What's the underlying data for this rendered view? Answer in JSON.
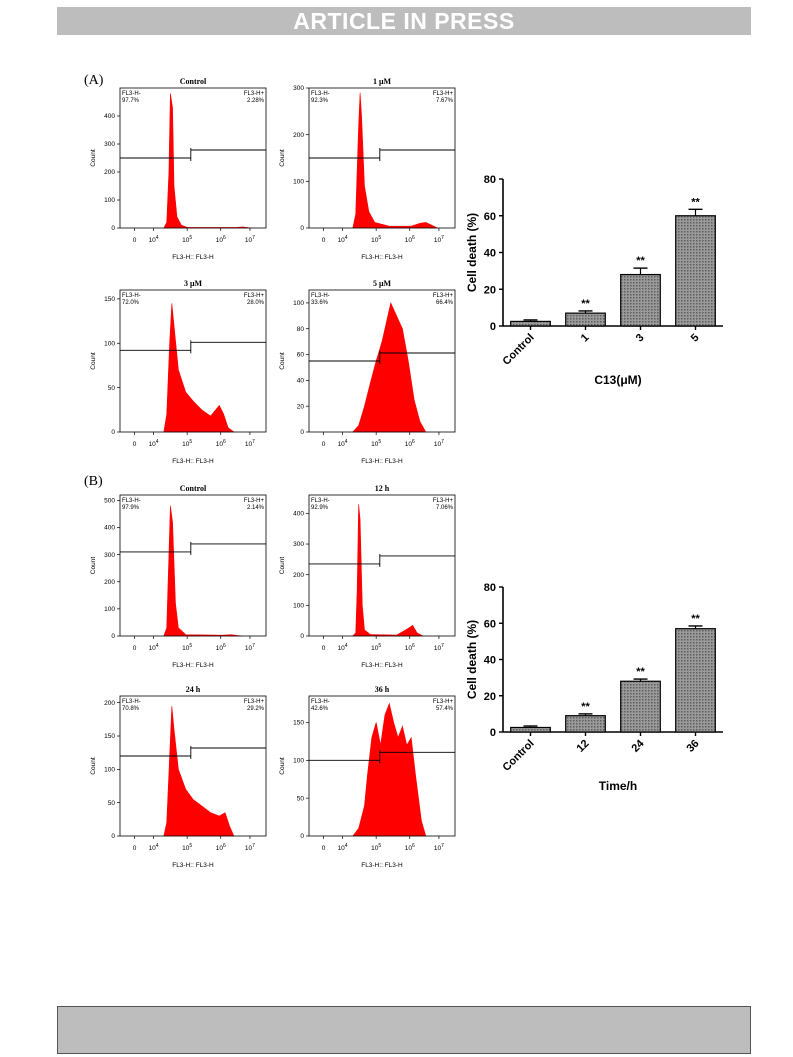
{
  "header": {
    "banner": "ARTICLE IN PRESS"
  },
  "panels": {
    "A_label": "(A)",
    "B_label": "(B)"
  },
  "colors": {
    "histogram_fill": "#ff0000",
    "banner_bg": "#bdbdbd",
    "bar_fill": "#8a8a8a"
  },
  "chart_data": [
    {
      "type": "area",
      "panel": "A",
      "title": "Control",
      "gate_neg_label": "FL3-H-",
      "gate_pos_label": "FL3-H+",
      "gate_neg_pct": "97.7%",
      "gate_pos_pct": "2.28%",
      "ylabel": "Count",
      "xlabel": "FL3-H:: FL3-H",
      "ylim": [
        0,
        500
      ],
      "yticks": [
        "0",
        "100",
        "200",
        "300",
        "400"
      ],
      "ytick_values": [
        0,
        100,
        200,
        300,
        400
      ],
      "xticks": [
        "0",
        "10^4",
        "10^5",
        "10^6",
        "10^7"
      ],
      "gate_level": 250,
      "histogram": [
        [
          0.3,
          0
        ],
        [
          0.32,
          20
        ],
        [
          0.335,
          200
        ],
        [
          0.345,
          480
        ],
        [
          0.36,
          430
        ],
        [
          0.37,
          150
        ],
        [
          0.39,
          40
        ],
        [
          0.42,
          10
        ],
        [
          0.46,
          2
        ],
        [
          0.8,
          2
        ],
        [
          0.84,
          4
        ],
        [
          0.88,
          1
        ],
        [
          0.9,
          0
        ]
      ]
    },
    {
      "type": "area",
      "panel": "A",
      "title": "1 μM",
      "gate_neg_label": "FL3-H-",
      "gate_pos_label": "FL3-H+",
      "gate_neg_pct": "92.3%",
      "gate_pos_pct": "7.67%",
      "ylabel": "Count",
      "xlabel": "FL3-H:: FL3-H",
      "ylim": [
        0,
        300
      ],
      "yticks": [
        "0",
        "100",
        "200",
        "300"
      ],
      "ytick_values": [
        0,
        100,
        200,
        300
      ],
      "xticks": [
        "0",
        "10^4",
        "10^5",
        "10^6",
        "10^7"
      ],
      "gate_level": 150,
      "histogram": [
        [
          0.3,
          0
        ],
        [
          0.32,
          30
        ],
        [
          0.34,
          220
        ],
        [
          0.35,
          290
        ],
        [
          0.36,
          240
        ],
        [
          0.38,
          90
        ],
        [
          0.41,
          35
        ],
        [
          0.45,
          12
        ],
        [
          0.55,
          4
        ],
        [
          0.7,
          4
        ],
        [
          0.76,
          10
        ],
        [
          0.8,
          12
        ],
        [
          0.84,
          6
        ],
        [
          0.88,
          0
        ]
      ]
    },
    {
      "type": "area",
      "panel": "A",
      "title": "3 μM",
      "gate_neg_label": "FL3-H-",
      "gate_pos_label": "FL3-H+",
      "gate_neg_pct": "72.0%",
      "gate_pos_pct": "28.0%",
      "ylabel": "Count",
      "xlabel": "FL3-H:: FL3-H",
      "ylim": [
        0,
        160
      ],
      "yticks": [
        "0",
        "50",
        "100",
        "150"
      ],
      "ytick_values": [
        0,
        50,
        100,
        150
      ],
      "xticks": [
        "0",
        "10^4",
        "10^5",
        "10^6",
        "10^7"
      ],
      "gate_level": 92,
      "histogram": [
        [
          0.3,
          0
        ],
        [
          0.32,
          20
        ],
        [
          0.34,
          100
        ],
        [
          0.355,
          145
        ],
        [
          0.37,
          120
        ],
        [
          0.4,
          70
        ],
        [
          0.45,
          45
        ],
        [
          0.5,
          35
        ],
        [
          0.56,
          25
        ],
        [
          0.62,
          18
        ],
        [
          0.68,
          30
        ],
        [
          0.71,
          20
        ],
        [
          0.74,
          5
        ],
        [
          0.78,
          0
        ]
      ]
    },
    {
      "type": "area",
      "panel": "A",
      "title": "5 μM",
      "gate_neg_label": "FL3-H-",
      "gate_pos_label": "FL3-H+",
      "gate_neg_pct": "33.6%",
      "gate_pos_pct": "66.4%",
      "ylabel": "Count",
      "xlabel": "FL3-H:: FL3-H",
      "ylim": [
        0,
        110
      ],
      "yticks": [
        "0",
        "20",
        "40",
        "60",
        "80",
        "100"
      ],
      "ytick_values": [
        0,
        20,
        40,
        60,
        80,
        100
      ],
      "xticks": [
        "0",
        "10^4",
        "10^5",
        "10^6",
        "10^7"
      ],
      "gate_level": 55,
      "histogram": [
        [
          0.3,
          0
        ],
        [
          0.34,
          5
        ],
        [
          0.38,
          20
        ],
        [
          0.42,
          38
        ],
        [
          0.46,
          55
        ],
        [
          0.5,
          70
        ],
        [
          0.53,
          85
        ],
        [
          0.56,
          100
        ],
        [
          0.6,
          90
        ],
        [
          0.64,
          80
        ],
        [
          0.68,
          55
        ],
        [
          0.72,
          25
        ],
        [
          0.76,
          8
        ],
        [
          0.8,
          0
        ]
      ]
    },
    {
      "type": "area",
      "panel": "B",
      "title": "Control",
      "gate_neg_label": "FL3-H-",
      "gate_pos_label": "FL3-H+",
      "gate_neg_pct": "97.9%",
      "gate_pos_pct": "2.14%",
      "ylabel": "Count",
      "xlabel": "FL3-H:: FL3-H",
      "ylim": [
        0,
        520
      ],
      "yticks": [
        "0",
        "100",
        "200",
        "300",
        "400",
        "500"
      ],
      "ytick_values": [
        0,
        100,
        200,
        300,
        400,
        500
      ],
      "xticks": [
        "0",
        "10^4",
        "10^5",
        "10^6",
        "10^7"
      ],
      "gate_level": 310,
      "histogram": [
        [
          0.3,
          0
        ],
        [
          0.32,
          30
        ],
        [
          0.335,
          300
        ],
        [
          0.345,
          480
        ],
        [
          0.36,
          420
        ],
        [
          0.38,
          120
        ],
        [
          0.4,
          30
        ],
        [
          0.45,
          5
        ],
        [
          0.7,
          3
        ],
        [
          0.76,
          5
        ],
        [
          0.8,
          2
        ],
        [
          0.84,
          0
        ]
      ]
    },
    {
      "type": "area",
      "panel": "B",
      "title": "12 h",
      "gate_neg_label": "FL3-H-",
      "gate_pos_label": "FL3-H+",
      "gate_neg_pct": "92.9%",
      "gate_pos_pct": "7.06%",
      "ylabel": "Count",
      "xlabel": "FL3-H:: FL3-H",
      "ylim": [
        0,
        460
      ],
      "yticks": [
        "0",
        "100",
        "200",
        "300",
        "400"
      ],
      "ytick_values": [
        0,
        100,
        200,
        300,
        400
      ],
      "xticks": [
        "0",
        "10^4",
        "10^5",
        "10^6",
        "10^7"
      ],
      "gate_level": 235,
      "histogram": [
        [
          0.3,
          0
        ],
        [
          0.32,
          10
        ],
        [
          0.33,
          150
        ],
        [
          0.34,
          430
        ],
        [
          0.35,
          380
        ],
        [
          0.365,
          100
        ],
        [
          0.38,
          20
        ],
        [
          0.42,
          5
        ],
        [
          0.6,
          3
        ],
        [
          0.68,
          25
        ],
        [
          0.71,
          35
        ],
        [
          0.74,
          10
        ],
        [
          0.78,
          0
        ]
      ]
    },
    {
      "type": "area",
      "panel": "B",
      "title": "24 h",
      "gate_neg_label": "FL3-H-",
      "gate_pos_label": "FL3-H+",
      "gate_neg_pct": "70.8%",
      "gate_pos_pct": "29.2%",
      "ylabel": "Count",
      "xlabel": "FL3-H:: FL3-H",
      "ylim": [
        0,
        210
      ],
      "yticks": [
        "0",
        "50",
        "100",
        "150",
        "200"
      ],
      "ytick_values": [
        0,
        50,
        100,
        150,
        200
      ],
      "xticks": [
        "0",
        "10^4",
        "10^5",
        "10^6",
        "10^7"
      ],
      "gate_level": 120,
      "histogram": [
        [
          0.3,
          0
        ],
        [
          0.32,
          20
        ],
        [
          0.34,
          120
        ],
        [
          0.355,
          195
        ],
        [
          0.37,
          160
        ],
        [
          0.4,
          100
        ],
        [
          0.45,
          70
        ],
        [
          0.5,
          55
        ],
        [
          0.56,
          45
        ],
        [
          0.62,
          35
        ],
        [
          0.68,
          30
        ],
        [
          0.72,
          35
        ],
        [
          0.75,
          15
        ],
        [
          0.78,
          0
        ]
      ]
    },
    {
      "type": "area",
      "panel": "B",
      "title": "36 h",
      "gate_neg_label": "FL3-H-",
      "gate_pos_label": "FL3-H+",
      "gate_neg_pct": "42.6%",
      "gate_pos_pct": "57.4%",
      "ylabel": "Count",
      "xlabel": "FL3-H:: FL3-H",
      "ylim": [
        0,
        185
      ],
      "yticks": [
        "0",
        "50",
        "100",
        "150"
      ],
      "ytick_values": [
        0,
        50,
        100,
        150
      ],
      "xticks": [
        "0",
        "10^4",
        "10^5",
        "10^6",
        "10^7"
      ],
      "gate_level": 100,
      "histogram": [
        [
          0.3,
          0
        ],
        [
          0.34,
          10
        ],
        [
          0.38,
          40
        ],
        [
          0.4,
          80
        ],
        [
          0.43,
          130
        ],
        [
          0.46,
          150
        ],
        [
          0.49,
          120
        ],
        [
          0.52,
          160
        ],
        [
          0.55,
          175
        ],
        [
          0.58,
          150
        ],
        [
          0.61,
          130
        ],
        [
          0.64,
          145
        ],
        [
          0.67,
          120
        ],
        [
          0.7,
          130
        ],
        [
          0.73,
          80
        ],
        [
          0.77,
          20
        ],
        [
          0.8,
          0
        ]
      ]
    },
    {
      "type": "bar",
      "panel": "A",
      "categories": [
        "Control",
        "1",
        "3",
        "5"
      ],
      "values": [
        2.5,
        7,
        28,
        60
      ],
      "errors": [
        0.8,
        1.2,
        3.5,
        3.5
      ],
      "significance": [
        "",
        "**",
        "**",
        "**"
      ],
      "xlabel": "C13(μM)",
      "ylabel": "Cell death (%)",
      "ylim": [
        0,
        80
      ],
      "yticks": [
        "0",
        "20",
        "40",
        "60",
        "80"
      ],
      "ytick_values": [
        0,
        20,
        40,
        60,
        80
      ]
    },
    {
      "type": "bar",
      "panel": "B",
      "categories": [
        "Control",
        "12",
        "24",
        "36"
      ],
      "values": [
        2.5,
        9,
        28,
        57
      ],
      "errors": [
        0.8,
        1.0,
        1.2,
        1.5
      ],
      "significance": [
        "",
        "**",
        "**",
        "**"
      ],
      "xlabel": "Time/h",
      "ylabel": "Cell death (%)",
      "ylim": [
        0,
        80
      ],
      "yticks": [
        "0",
        "20",
        "40",
        "60",
        "80"
      ],
      "ytick_values": [
        0,
        20,
        40,
        60,
        80
      ]
    }
  ]
}
